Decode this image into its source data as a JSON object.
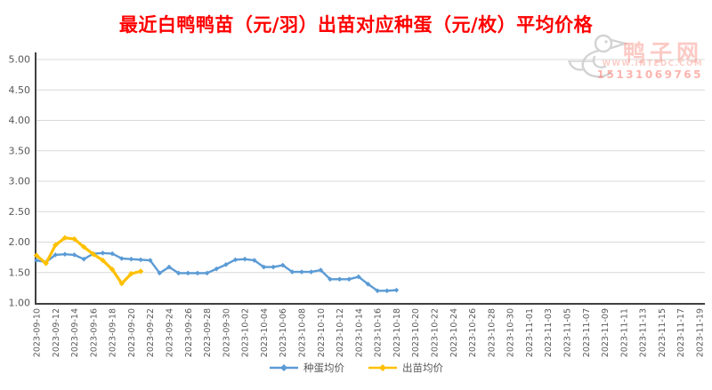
{
  "title": "最近白鸭鸭苗（元/羽）出苗对应种蛋（元/枚）平均价格",
  "watermark": {
    "site_name": "鸭子网",
    "site_url": "WWW.INTEDC.COM",
    "phone": "15131069765"
  },
  "colors": {
    "title": "#ff0000",
    "axis_line": "#404040",
    "gridline": "#d9d9d9",
    "tick_label": "#595959",
    "series_egg": "#5B9BD5",
    "series_duckling": "#FFC000"
  },
  "chart_data": {
    "type": "line",
    "title": "最近白鸭鸭苗（元/羽）出苗对应种蛋（元/枚）平均价格",
    "grid": true,
    "legend_position": "bottom",
    "y_axis": {
      "min": 1.0,
      "max": 5.0,
      "step": 0.5,
      "tick_labels": [
        "1.00",
        "1.50",
        "2.00",
        "2.50",
        "3.00",
        "3.50",
        "4.00",
        "4.50",
        "5.00"
      ]
    },
    "x_axis": {
      "label_every_days": 2,
      "tick_labels": [
        "2023-09-10",
        "2023-09-12",
        "2023-09-14",
        "2023-09-16",
        "2023-09-18",
        "2023-09-20",
        "2023-09-22",
        "2023-09-24",
        "2023-09-26",
        "2023-09-28",
        "2023-09-30",
        "2023-10-02",
        "2023-10-04",
        "2023-10-06",
        "2023-10-08",
        "2023-10-10",
        "2023-10-12",
        "2023-10-14",
        "2023-10-16",
        "2023-10-18",
        "2023-10-20",
        "2023-10-22",
        "2023-10-24",
        "2023-10-26",
        "2023-10-28",
        "2023-10-30",
        "2023-11-01",
        "2023-11-03",
        "2023-11-05",
        "2023-11-07",
        "2023-11-09",
        "2023-11-11",
        "2023-11-13",
        "2023-11-15",
        "2023-11-17",
        "2023-11-19"
      ]
    },
    "series": [
      {
        "name": "种蛋均价",
        "color": "#5B9BD5",
        "start_date": "2023-09-10",
        "interval_days": 1,
        "values": [
          1.7,
          1.67,
          1.79,
          1.8,
          1.79,
          1.72,
          1.81,
          1.82,
          1.81,
          1.73,
          1.72,
          1.71,
          1.7,
          1.49,
          1.59,
          1.49,
          1.49,
          1.49,
          1.49,
          1.56,
          1.63,
          1.71,
          1.72,
          1.7,
          1.59,
          1.59,
          1.62,
          1.51,
          1.51,
          1.51,
          1.54,
          1.39,
          1.39,
          1.39,
          1.43,
          1.31,
          1.2,
          1.2,
          1.21
        ]
      },
      {
        "name": "出苗均价",
        "color": "#FFC000",
        "start_date": "2023-09-10",
        "interval_days": 1,
        "values": [
          1.78,
          1.65,
          1.95,
          2.07,
          2.05,
          1.92,
          1.8,
          1.7,
          1.55,
          1.32,
          1.48,
          1.52
        ]
      }
    ]
  }
}
